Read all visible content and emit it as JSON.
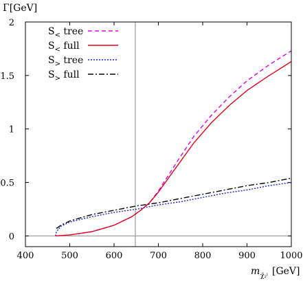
{
  "chart_data": {
    "type": "line",
    "ylabel": "Γ[GeV]",
    "xlabel_main": "m",
    "xlabel_sub": "χ̃₂ˡ",
    "xlabel_unit": "[GeV]",
    "xlim": [
      400,
      1000
    ],
    "ylim": [
      -0.1,
      2
    ],
    "xticks": [
      400,
      500,
      600,
      700,
      800,
      900,
      1000
    ],
    "yticks": [
      0,
      0.5,
      1,
      1.5,
      2
    ],
    "xtick_labels": [
      "400",
      "500",
      "600",
      "700",
      "800",
      "900",
      "1000"
    ],
    "ytick_labels": [
      "0",
      "0.5",
      "1",
      "1.5",
      "2"
    ],
    "legend_position": "top-left",
    "vline_x": 648,
    "hline_y": 0,
    "series": [
      {
        "name": "S< tree",
        "label_main": "S",
        "label_sub": "<",
        "label_rest": " tree",
        "color": "#e000e0",
        "dash": "6,4",
        "x": [
          468,
          500,
          550,
          600,
          640,
          660,
          680,
          700,
          740,
          780,
          820,
          860,
          900,
          950,
          1000
        ],
        "y": [
          0.0,
          0.01,
          0.04,
          0.1,
          0.18,
          0.24,
          0.31,
          0.42,
          0.68,
          0.93,
          1.13,
          1.3,
          1.45,
          1.6,
          1.73
        ]
      },
      {
        "name": "S< full",
        "label_main": "S",
        "label_sub": "<",
        "label_rest": " full",
        "color": "#e8001c",
        "dash": "",
        "x": [
          468,
          500,
          550,
          600,
          640,
          660,
          680,
          700,
          740,
          780,
          820,
          860,
          900,
          950,
          1000
        ],
        "y": [
          0.0,
          0.01,
          0.04,
          0.1,
          0.18,
          0.24,
          0.31,
          0.41,
          0.64,
          0.87,
          1.06,
          1.22,
          1.36,
          1.5,
          1.63
        ]
      },
      {
        "name": "S> tree",
        "label_main": "S",
        "label_sub": ">",
        "label_rest": " tree",
        "color": "#2020e0",
        "dash": "2,2",
        "x": [
          468,
          470,
          480,
          500,
          550,
          600,
          650,
          700,
          750,
          800,
          850,
          900,
          950,
          1000
        ],
        "y": [
          0.0,
          0.04,
          0.09,
          0.13,
          0.18,
          0.22,
          0.25,
          0.29,
          0.32,
          0.36,
          0.4,
          0.43,
          0.47,
          0.5
        ]
      },
      {
        "name": "S> full",
        "label_main": "S",
        "label_sub": ">",
        "label_rest": " full",
        "color": "#000000",
        "dash": "8,3,2,3",
        "x": [
          470,
          480,
          500,
          550,
          600,
          650,
          700,
          750,
          800,
          850,
          900,
          950,
          1000
        ],
        "y": [
          0.07,
          0.1,
          0.14,
          0.2,
          0.24,
          0.28,
          0.31,
          0.35,
          0.39,
          0.43,
          0.47,
          0.5,
          0.54
        ]
      }
    ]
  }
}
